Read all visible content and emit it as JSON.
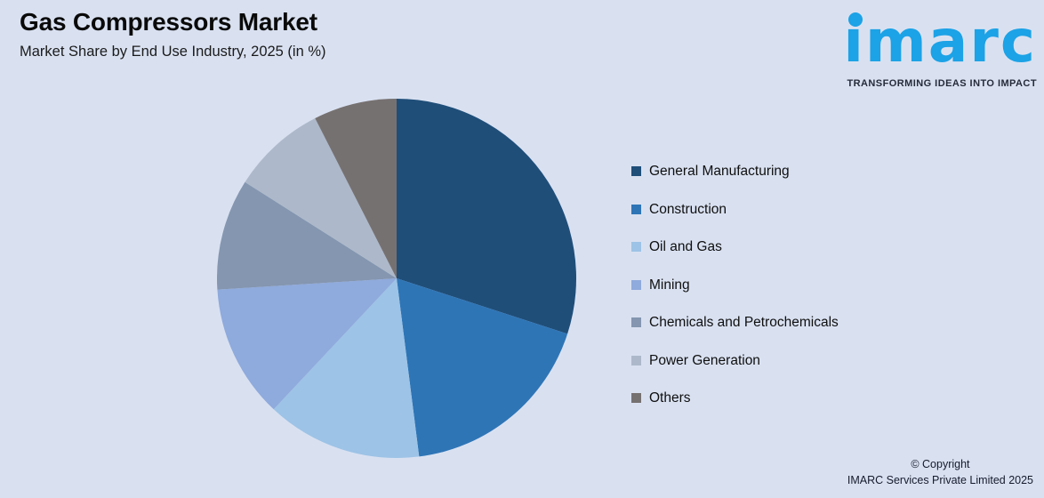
{
  "page": {
    "background": "#D9E1F1"
  },
  "header": {
    "title": "Gas Compressors Market",
    "subtitle": "Market Share by End Use Industry, 2025 (in %)"
  },
  "logo": {
    "brand": "imarc",
    "tagline": "TRANSFORMING IDEAS INTO IMPACT",
    "brand_color": "#1CA2E6",
    "tagline_color": "#262B3A"
  },
  "chart_data": {
    "type": "pie",
    "title": "Gas Compressors Market",
    "subtitle": "Market Share by End Use Industry, 2025 (in %)",
    "unit": "%",
    "year": "2025",
    "start_angle_deg": 0,
    "direction": "clockwise",
    "legend_position": "right",
    "data_labels_shown": false,
    "series": [
      {
        "name": "General Manufacturing",
        "value": 30,
        "color": "#1F4E79"
      },
      {
        "name": "Construction",
        "value": 18,
        "color": "#2E75B6"
      },
      {
        "name": "Oil and Gas",
        "value": 14,
        "color": "#9DC3E6"
      },
      {
        "name": "Mining",
        "value": 12,
        "color": "#8FAADC"
      },
      {
        "name": "Chemicals and Petrochemicals",
        "value": 10,
        "color": "#8496B0"
      },
      {
        "name": "Power Generation",
        "value": 8.5,
        "color": "#ADB9CA"
      },
      {
        "name": "Others",
        "value": 7.5,
        "color": "#767171"
      }
    ]
  },
  "footer": {
    "copyright_line1": "© Copyright",
    "copyright_line2": "IMARC Services Private Limited 2025"
  }
}
